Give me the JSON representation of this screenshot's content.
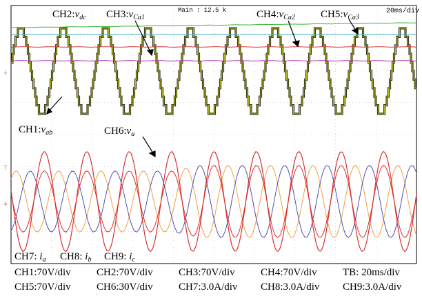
{
  "header": {
    "timebase_readout": "Main : 12.5 k",
    "time_per_div": "20ms/div"
  },
  "markers": {
    "trigger_mark": "T",
    "ground_mark_top": "⏚",
    "ground_mark_bottom": "⏚"
  },
  "labels": {
    "ch1": {
      "base": "CH1:",
      "sym": "v",
      "sub": "ab"
    },
    "ch2": {
      "base": "CH2:",
      "sym": "v",
      "sub": "dc"
    },
    "ch3": {
      "base": "CH3:",
      "sym": "v",
      "sub": "Ca1"
    },
    "ch4": {
      "base": "CH4:",
      "sym": "v",
      "sub": "Ca2"
    },
    "ch5": {
      "base": "CH5:",
      "sym": "v",
      "sub": "Ca3"
    },
    "ch6": {
      "base": "CH6:",
      "sym": "v",
      "sub": "a"
    },
    "ch7": {
      "base": "CH7: ",
      "sym": "i",
      "sub": "a"
    },
    "ch8": {
      "base": "CH8: ",
      "sym": "i",
      "sub": "b"
    },
    "ch9": {
      "base": "CH9: ",
      "sym": "i",
      "sub": "c"
    }
  },
  "scales": {
    "row1": [
      "CH1:70V/div",
      "CH2:70V/div",
      "CH3:70V/div",
      "CH4:70V/div",
      "TB: 20ms/div"
    ],
    "row2": [
      "CH5:70V/div",
      "CH6:30V/div",
      "CH7:3.0A/div",
      "CH8:3.0A/div",
      "CH9:3.0A/div"
    ]
  },
  "colors": {
    "ch1": "#3d3d1c",
    "ch1_edge": "#d8d820",
    "ch2": "#3cb43c",
    "ch3": "#40b0d0",
    "ch4": "#d84040",
    "ch5": "#b040b0",
    "ch6": "#d83030",
    "ch7": "#d83030",
    "ch8": "#5050b0",
    "ch9": "#f0a040",
    "grid": "#b0b0b0"
  }
}
